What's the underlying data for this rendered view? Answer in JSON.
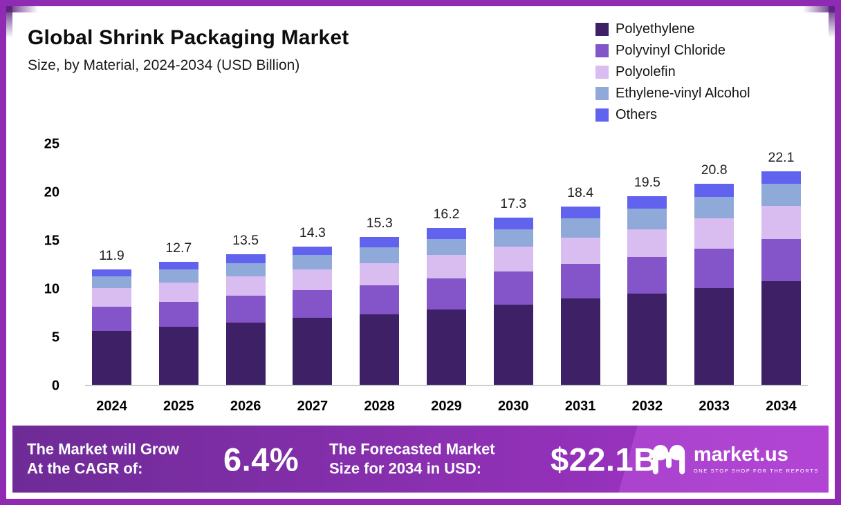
{
  "chart_data": {
    "type": "bar",
    "stacked": true,
    "title": "Global Shrink Packaging Market",
    "subtitle": "Size, by Material, 2024-2034 (USD Billion)",
    "unit": "USD Billion",
    "categories": [
      "2024",
      "2025",
      "2026",
      "2027",
      "2028",
      "2029",
      "2030",
      "2031",
      "2032",
      "2033",
      "2034"
    ],
    "series": [
      {
        "name": "Polyethylene",
        "color": "#3e2066",
        "values": [
          5.6,
          6.0,
          6.4,
          6.9,
          7.3,
          7.8,
          8.3,
          8.9,
          9.4,
          10.0,
          10.7
        ]
      },
      {
        "name": "Polyvinyl Chloride",
        "color": "#8355c8",
        "values": [
          2.5,
          2.6,
          2.8,
          2.9,
          3.0,
          3.2,
          3.4,
          3.6,
          3.8,
          4.1,
          4.4
        ]
      },
      {
        "name": "Polyolefin",
        "color": "#d9bcf0",
        "values": [
          1.9,
          2.0,
          2.0,
          2.1,
          2.3,
          2.4,
          2.6,
          2.7,
          2.9,
          3.1,
          3.4
        ]
      },
      {
        "name": "Ethylene-vinyl Alcohol",
        "color": "#8fa9d9",
        "values": [
          1.2,
          1.3,
          1.4,
          1.5,
          1.6,
          1.7,
          1.8,
          2.0,
          2.1,
          2.2,
          2.3
        ]
      },
      {
        "name": "Others",
        "color": "#6163ef",
        "values": [
          0.7,
          0.8,
          0.9,
          0.9,
          1.1,
          1.1,
          1.2,
          1.2,
          1.3,
          1.4,
          1.3
        ]
      }
    ],
    "totals": [
      11.9,
      12.7,
      13.5,
      14.3,
      15.3,
      16.2,
      17.3,
      18.4,
      19.5,
      20.8,
      22.1
    ],
    "ylim": [
      0,
      25
    ],
    "yticks": [
      0,
      5,
      10,
      15,
      20,
      25
    ],
    "grid": false,
    "legend_position": "top-right"
  },
  "banner": {
    "cagr_line1": "The Market will Grow",
    "cagr_line2": "At the CAGR of:",
    "cagr_value": "6.4%",
    "forecast_line1": "The Forecasted Market",
    "forecast_line2": "Size for 2034 in USD:",
    "forecast_value": "$22.1B",
    "logo_name": "market.us",
    "logo_tagline": "ONE STOP SHOP FOR THE REPORTS"
  },
  "colors": {
    "frame": "#8e2bb2",
    "frame_corner": "#5b2280",
    "banner_gradient": [
      "#6e2b96",
      "#a434c9"
    ],
    "axis_line": "#cdcdcd"
  }
}
